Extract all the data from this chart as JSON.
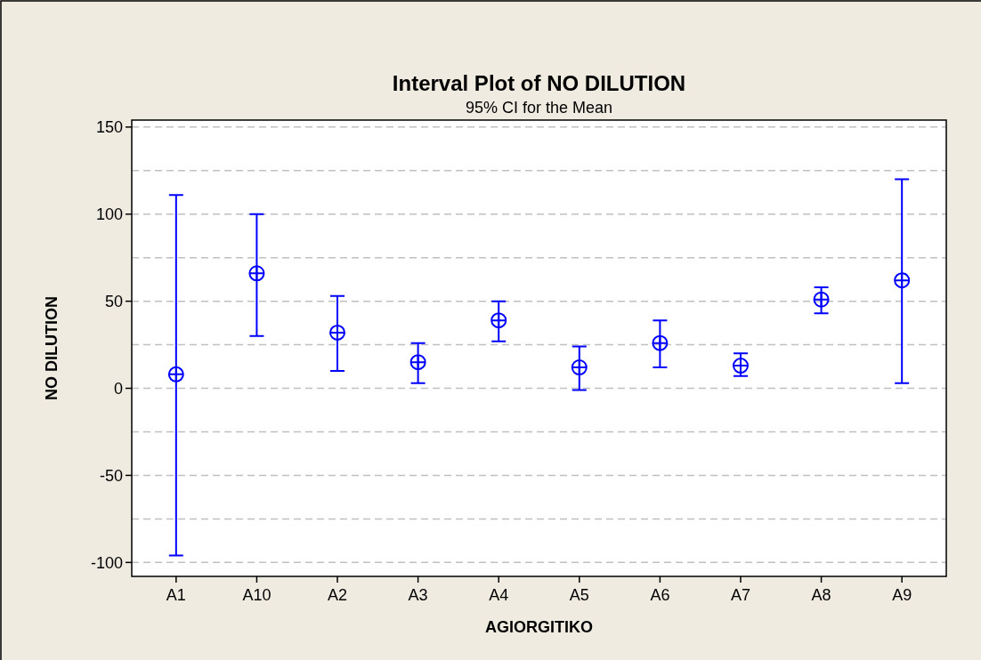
{
  "chart_data": {
    "type": "scatter",
    "title": "Interval Plot of NO DILUTION",
    "subtitle": "95% CI for the Mean",
    "xlabel": "AGIORGITIKO",
    "ylabel": "NO DILUTION",
    "categories": [
      "A1",
      "A10",
      "A2",
      "A3",
      "A4",
      "A5",
      "A6",
      "A7",
      "A8",
      "A9"
    ],
    "series": [
      {
        "color": "#0000ff",
        "values": [
          8,
          66,
          32,
          15,
          39,
          12,
          26,
          13,
          51,
          62
        ],
        "errors": [
          [
            -96,
            111
          ],
          [
            30,
            100
          ],
          [
            10,
            53
          ],
          [
            3,
            26
          ],
          [
            27,
            50
          ],
          [
            -1,
            24
          ],
          [
            12,
            39
          ],
          [
            7,
            20
          ],
          [
            43,
            58
          ],
          [
            3,
            120
          ]
        ]
      }
    ],
    "ylim": [
      -108,
      154
    ],
    "yticks": [
      -100,
      {
        "value": -75,
        "label": null
      },
      -50,
      {
        "value": -25,
        "label": null
      },
      0,
      {
        "value": 25,
        "label": null
      },
      50,
      {
        "value": 75,
        "label": null
      },
      100,
      {
        "value": 125,
        "label": null
      },
      150
    ],
    "grid": "y",
    "marker": "circle"
  }
}
